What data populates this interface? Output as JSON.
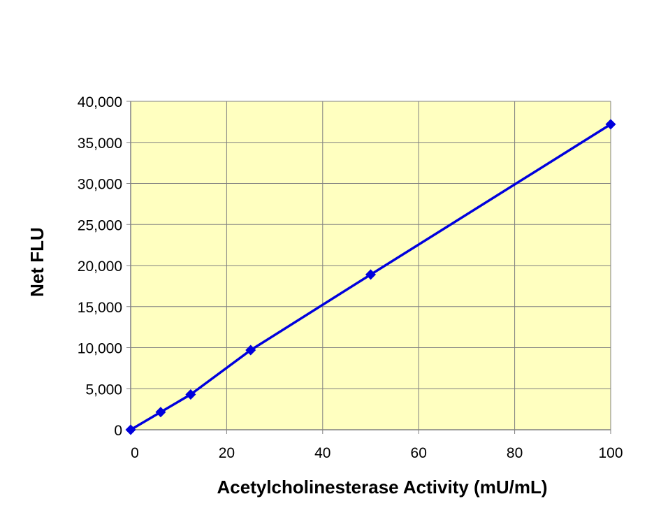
{
  "chart_data": {
    "type": "line",
    "xlabel": "Acetylcholinesterase Activity (mU/mL)",
    "ylabel": "Net FLU",
    "xlim": [
      0,
      100
    ],
    "ylim": [
      0,
      40000
    ],
    "x_ticks": [
      "0",
      "20",
      "40",
      "60",
      "80",
      "100"
    ],
    "y_ticks": [
      "0",
      "5,000",
      "10,000",
      "15,000",
      "20,000",
      "25,000",
      "30,000",
      "35,000",
      "40,000"
    ],
    "grid": true,
    "legend": "none",
    "series": [
      {
        "x": [
          0,
          6.25,
          12.5,
          25,
          50,
          100
        ],
        "y": [
          0,
          2150,
          4300,
          9700,
          18900,
          37200
        ]
      }
    ],
    "colors": {
      "plot_background": "#ffffc0",
      "series": "#0000dd",
      "grid": "#808080",
      "axis": "#808080"
    }
  }
}
